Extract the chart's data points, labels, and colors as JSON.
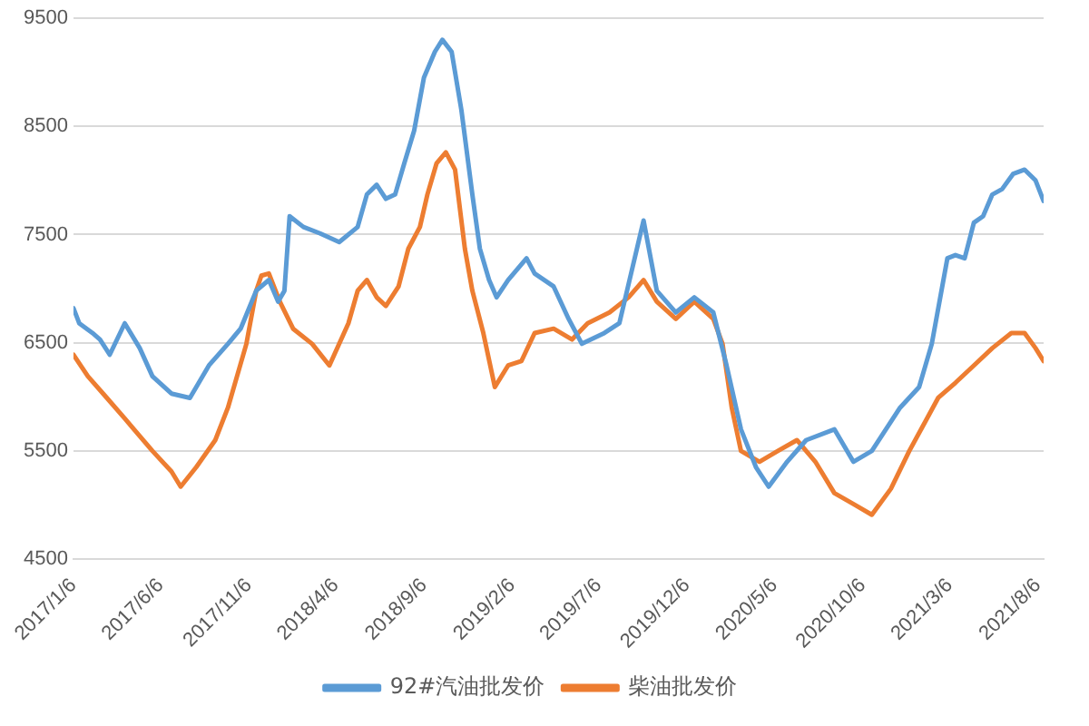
{
  "chart_data": {
    "type": "line",
    "xlim": [
      "2017-01-06",
      "2021-08-16"
    ],
    "xticks": [
      {
        "value": "2017-01-06",
        "label": "2017/1/6"
      },
      {
        "value": "2017-06-06",
        "label": "2017/6/6"
      },
      {
        "value": "2017-11-06",
        "label": "2017/11/6"
      },
      {
        "value": "2018-04-06",
        "label": "2018/4/6"
      },
      {
        "value": "2018-09-06",
        "label": "2018/9/6"
      },
      {
        "value": "2019-02-06",
        "label": "2019/2/6"
      },
      {
        "value": "2019-07-06",
        "label": "2019/7/6"
      },
      {
        "value": "2019-12-06",
        "label": "2019/12/6"
      },
      {
        "value": "2020-05-06",
        "label": "2020/5/6"
      },
      {
        "value": "2020-10-06",
        "label": "2020/10/6"
      },
      {
        "value": "2021-03-06",
        "label": "2021/3/6"
      },
      {
        "value": "2021-08-06",
        "label": "2021/8/6"
      }
    ],
    "ylim": [
      4500,
      9500
    ],
    "yticks": [
      4500,
      5500,
      6500,
      7500,
      8500,
      9500
    ],
    "grid": "y",
    "legend": "bottom",
    "marker": "none",
    "line_style": "solid",
    "series": [
      {
        "name": "92#汽油批发价",
        "color": "#5b9bd5",
        "x": [
          "2017-01-06",
          "2017-01-16",
          "2017-02-08",
          "2017-02-21",
          "2017-03-10",
          "2017-04-05",
          "2017-05-01",
          "2017-05-23",
          "2017-06-25",
          "2017-07-27",
          "2017-08-29",
          "2017-10-01",
          "2017-10-23",
          "2017-11-19",
          "2017-12-11",
          "2017-12-27",
          "2018-01-07",
          "2018-01-16",
          "2018-02-09",
          "2018-03-10",
          "2018-04-12",
          "2018-05-14",
          "2018-05-30",
          "2018-06-16",
          "2018-07-02",
          "2018-07-18",
          "2018-08-03",
          "2018-08-20",
          "2018-09-06",
          "2018-09-25",
          "2018-10-08",
          "2018-10-24",
          "2018-11-10",
          "2018-11-29",
          "2018-12-12",
          "2018-12-28",
          "2019-01-10",
          "2019-01-30",
          "2019-03-03",
          "2019-03-17",
          "2019-04-19",
          "2019-05-15",
          "2019-06-07",
          "2019-07-16",
          "2019-08-11",
          "2019-09-22",
          "2019-10-15",
          "2019-11-17",
          "2019-12-19",
          "2020-01-21",
          "2020-02-13",
          "2020-03-09",
          "2020-04-04",
          "2020-04-26",
          "2020-05-28",
          "2020-06-30",
          "2020-08-18",
          "2020-09-20",
          "2020-10-22",
          "2020-12-10",
          "2021-01-12",
          "2021-02-03",
          "2021-03-02",
          "2021-03-16",
          "2021-04-01",
          "2021-04-17",
          "2021-05-03",
          "2021-05-19",
          "2021-06-05",
          "2021-06-24",
          "2021-07-14",
          "2021-08-02",
          "2021-08-16"
        ],
        "values": [
          6820,
          6680,
          6590,
          6530,
          6390,
          6680,
          6450,
          6190,
          6030,
          5990,
          6290,
          6490,
          6630,
          6980,
          7080,
          6880,
          6980,
          7670,
          7570,
          7510,
          7430,
          7570,
          7870,
          7960,
          7830,
          7870,
          8160,
          8460,
          8950,
          9190,
          9300,
          9190,
          8650,
          7870,
          7370,
          7080,
          6920,
          7080,
          7280,
          7140,
          7020,
          6720,
          6490,
          6590,
          6680,
          7630,
          6980,
          6780,
          6920,
          6780,
          6290,
          5700,
          5350,
          5170,
          5400,
          5600,
          5700,
          5400,
          5500,
          5900,
          6090,
          6490,
          7280,
          7310,
          7280,
          7610,
          7670,
          7870,
          7920,
          8060,
          8100,
          8000,
          7810
        ]
      },
      {
        "name": "柴油批发价",
        "color": "#ed7d31",
        "x": [
          "2017-01-06",
          "2017-01-31",
          "2017-03-05",
          "2017-04-05",
          "2017-04-21",
          "2017-05-23",
          "2017-06-25",
          "2017-07-11",
          "2017-08-07",
          "2017-09-09",
          "2017-10-01",
          "2017-11-02",
          "2017-11-19",
          "2017-11-28",
          "2017-12-11",
          "2017-12-30",
          "2018-01-22",
          "2018-02-24",
          "2018-03-26",
          "2018-04-28",
          "2018-05-14",
          "2018-05-30",
          "2018-06-16",
          "2018-07-02",
          "2018-07-24",
          "2018-08-10",
          "2018-08-30",
          "2018-09-12",
          "2018-09-28",
          "2018-10-14",
          "2018-10-30",
          "2018-11-16",
          "2018-11-29",
          "2018-12-18",
          "2019-01-07",
          "2019-01-30",
          "2019-02-22",
          "2019-03-17",
          "2019-04-19",
          "2019-05-21",
          "2019-06-17",
          "2019-07-25",
          "2019-08-27",
          "2019-09-22",
          "2019-10-15",
          "2019-11-17",
          "2019-12-19",
          "2020-01-21",
          "2020-02-06",
          "2020-02-22",
          "2020-03-09",
          "2020-04-10",
          "2020-05-12",
          "2020-06-14",
          "2020-07-16",
          "2020-08-18",
          "2020-09-20",
          "2020-10-22",
          "2020-11-24",
          "2020-12-26",
          "2021-02-14",
          "2021-03-16",
          "2021-04-17",
          "2021-05-19",
          "2021-06-21",
          "2021-07-14",
          "2021-08-02",
          "2021-08-16"
        ],
        "values": [
          6390,
          6190,
          5990,
          5800,
          5700,
          5500,
          5310,
          5170,
          5350,
          5600,
          5900,
          6490,
          6980,
          7120,
          7140,
          6880,
          6630,
          6490,
          6290,
          6680,
          6980,
          7080,
          6920,
          6840,
          7020,
          7370,
          7570,
          7870,
          8160,
          8260,
          8100,
          7370,
          6980,
          6590,
          6090,
          6290,
          6330,
          6590,
          6630,
          6530,
          6680,
          6780,
          6920,
          7080,
          6880,
          6720,
          6880,
          6720,
          6490,
          5900,
          5500,
          5400,
          5500,
          5600,
          5400,
          5110,
          5010,
          4910,
          5150,
          5500,
          5990,
          6130,
          6290,
          6450,
          6590,
          6590,
          6450,
          6330
        ]
      }
    ]
  }
}
